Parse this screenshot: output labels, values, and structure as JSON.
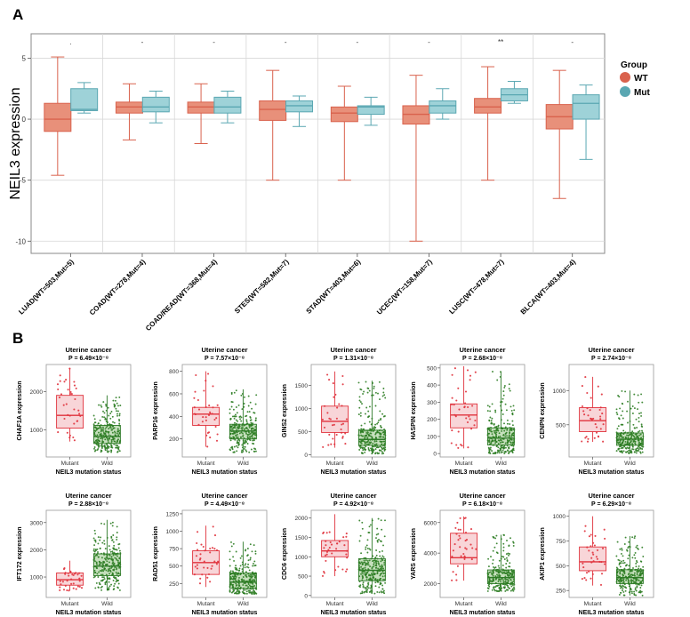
{
  "panel_labels": {
    "a": "A",
    "b": "B"
  },
  "colors": {
    "wt_fill": "#e8907a",
    "wt_stroke": "#d9624d",
    "mut_fill": "#9ed2d8",
    "mut_stroke": "#5aa7b2",
    "mutant_fill": "#f8d5d8",
    "mutant_stroke": "#e0323c",
    "mutant_dot": "#e0323c",
    "wild_fill": "#c6e0bd",
    "wild_stroke": "#2f7a2a",
    "wild_dot": "#2e7d23",
    "grid": "#d8d8d8"
  },
  "chart_data": [
    {
      "type": "box",
      "ylabel": "NEIL3 expression",
      "ylim": [
        -11,
        7
      ],
      "yticks": [
        -10,
        -5,
        0,
        5
      ],
      "ytick_labels": [
        "-10",
        "-5",
        "0",
        "5"
      ],
      "legend": {
        "title": "Group",
        "entries": [
          "WT",
          "Mut"
        ],
        "position": "right"
      },
      "categories": [
        "LUAD(WT=503,Mut=5)",
        "COAD(WT=278,Mut=4)",
        "COAD/READ(WT=368,Mut=4)",
        "STES(WT=582,Mut=7)",
        "STAD(WT=403,Mut=6)",
        "UCEC(WT=158,Mut=7)",
        "LUSC(WT=478,Mut=7)",
        "BLCA(WT=403,Mut=4)"
      ],
      "significance": [
        ".",
        "-",
        "-",
        "-",
        "-",
        "-",
        "**",
        "-"
      ],
      "series": [
        {
          "name": "WT",
          "boxes": [
            {
              "whislo": -4.6,
              "q1": -1.0,
              "med": 0.0,
              "q3": 1.3,
              "whishi": 5.1
            },
            {
              "whislo": -1.7,
              "q1": 0.5,
              "med": 1.0,
              "q3": 1.4,
              "whishi": 2.9
            },
            {
              "whislo": -2.0,
              "q1": 0.5,
              "med": 1.0,
              "q3": 1.4,
              "whishi": 2.9
            },
            {
              "whislo": -5.0,
              "q1": -0.1,
              "med": 0.8,
              "q3": 1.5,
              "whishi": 4.0
            },
            {
              "whislo": -5.0,
              "q1": -0.2,
              "med": 0.5,
              "q3": 1.0,
              "whishi": 2.7
            },
            {
              "whislo": -10.0,
              "q1": -0.4,
              "med": 0.4,
              "q3": 1.1,
              "whishi": 3.6
            },
            {
              "whislo": -5.0,
              "q1": 0.5,
              "med": 1.0,
              "q3": 1.7,
              "whishi": 4.3
            },
            {
              "whislo": -6.5,
              "q1": -0.8,
              "med": 0.2,
              "q3": 1.2,
              "whishi": 4.0
            }
          ]
        },
        {
          "name": "Mut",
          "boxes": [
            {
              "whislo": 0.5,
              "q1": 0.7,
              "med": 0.8,
              "q3": 2.5,
              "whishi": 3.0
            },
            {
              "whislo": -0.3,
              "q1": 0.6,
              "med": 1.0,
              "q3": 1.8,
              "whishi": 2.3
            },
            {
              "whislo": -0.3,
              "q1": 0.5,
              "med": 1.0,
              "q3": 1.8,
              "whishi": 2.3
            },
            {
              "whislo": -0.6,
              "q1": 0.6,
              "med": 1.1,
              "q3": 1.5,
              "whishi": 1.9
            },
            {
              "whislo": -0.5,
              "q1": 0.4,
              "med": 1.0,
              "q3": 1.1,
              "whishi": 1.8
            },
            {
              "whislo": 0.0,
              "q1": 0.5,
              "med": 1.1,
              "q3": 1.5,
              "whishi": 2.5
            },
            {
              "whislo": 1.3,
              "q1": 1.5,
              "med": 2.0,
              "q3": 2.5,
              "whishi": 3.1
            },
            {
              "whislo": -3.3,
              "q1": 0.0,
              "med": 1.3,
              "q3": 2.0,
              "whishi": 2.8
            }
          ]
        }
      ]
    },
    {
      "type": "box_jitter",
      "xlabel": "NEIL3 mutation status",
      "categories": [
        "Mutant",
        "Wild"
      ],
      "panels": [
        {
          "title": "Uterine cancer",
          "p_value": "P = 6.49×10⁻⁸",
          "ylabel": "CHAF1A expression",
          "ylim": [
            300,
            2700
          ],
          "yticks": [
            1000,
            2000
          ],
          "ytick_labels": [
            "1000",
            "2000"
          ],
          "mutant": {
            "whislo": 700,
            "q1": 1050,
            "med": 1380,
            "q3": 1900,
            "whishi": 2600
          },
          "wild": {
            "whislo": 420,
            "q1": 650,
            "med": 830,
            "q3": 1120,
            "whishi": 1900
          }
        },
        {
          "title": "Uterine cancer",
          "p_value": "P = 7.57×10⁻⁸",
          "ylabel": "PARP16 expression",
          "ylim": [
            40,
            860
          ],
          "yticks": [
            200,
            400,
            600,
            800
          ],
          "ytick_labels": [
            "200",
            "400",
            "600",
            "800"
          ],
          "mutant": {
            "whislo": 130,
            "q1": 320,
            "med": 420,
            "q3": 480,
            "whishi": 800
          },
          "wild": {
            "whislo": 80,
            "q1": 200,
            "med": 270,
            "q3": 330,
            "whishi": 640
          }
        },
        {
          "title": "Uterine cancer",
          "p_value": "P = 1.31×10⁻⁸",
          "ylabel": "GINS2 expression",
          "ylim": [
            -50,
            1950
          ],
          "yticks": [
            0,
            500,
            1000,
            1500
          ],
          "ytick_labels": [
            "0",
            "500",
            "1000",
            "1500"
          ],
          "mutant": {
            "whislo": 150,
            "q1": 480,
            "med": 720,
            "q3": 1050,
            "whishi": 1800
          },
          "wild": {
            "whislo": 20,
            "q1": 200,
            "med": 330,
            "q3": 530,
            "whishi": 1600
          }
        },
        {
          "title": "Uterine cancer",
          "p_value": "P = 2.68×10⁻⁸",
          "ylabel": "HASPIN expression",
          "ylim": [
            -20,
            520
          ],
          "yticks": [
            0,
            100,
            200,
            300,
            400,
            500
          ],
          "ytick_labels": [
            "0",
            "100",
            "200",
            "300",
            "400",
            "500"
          ],
          "mutant": {
            "whislo": 30,
            "q1": 150,
            "med": 225,
            "q3": 290,
            "whishi": 510
          },
          "wild": {
            "whislo": 0,
            "q1": 50,
            "med": 90,
            "q3": 150,
            "whishi": 480
          }
        },
        {
          "title": "Uterine cancer",
          "p_value": "P = 2.74×10⁻⁸",
          "ylabel": "CENPN expression",
          "ylim": [
            30,
            1380
          ],
          "yticks": [
            500,
            1000
          ],
          "ytick_labels": [
            "500",
            "1000"
          ],
          "mutant": {
            "whislo": 250,
            "q1": 400,
            "med": 560,
            "q3": 750,
            "whishi": 1200
          },
          "wild": {
            "whislo": 80,
            "q1": 200,
            "med": 290,
            "q3": 380,
            "whishi": 1000
          }
        },
        {
          "title": "Uterine cancer",
          "p_value": "P = 2.88×10⁻⁸",
          "ylabel": "IFT172 expression",
          "ylim": [
            250,
            3450
          ],
          "yticks": [
            1000,
            2000,
            3000
          ],
          "ytick_labels": [
            "1000",
            "2000",
            "3000"
          ],
          "mutant": {
            "whislo": 500,
            "q1": 700,
            "med": 900,
            "q3": 1150,
            "whishi": 1600
          },
          "wild": {
            "whislo": 500,
            "q1": 1050,
            "med": 1400,
            "q3": 1850,
            "whishi": 3100
          }
        },
        {
          "title": "Uterine cancer",
          "p_value": "P = 4.49×10⁻⁸",
          "ylabel": "RAD51 expression",
          "ylim": [
            50,
            1300
          ],
          "yticks": [
            250,
            500,
            750,
            1000,
            1250
          ],
          "ytick_labels": [
            "250",
            "500",
            "750",
            "1000",
            "1250"
          ],
          "mutant": {
            "whislo": 200,
            "q1": 380,
            "med": 550,
            "q3": 720,
            "whishi": 1080
          },
          "wild": {
            "whislo": 100,
            "q1": 180,
            "med": 270,
            "q3": 400,
            "whishi": 850
          }
        },
        {
          "title": "Uterine cancer",
          "p_value": "P = 4.92×10⁻⁸",
          "ylabel": "CDC6 expression",
          "ylim": [
            -50,
            2200
          ],
          "yticks": [
            0,
            500,
            1000,
            1500,
            2000
          ],
          "ytick_labels": [
            "0",
            "500",
            "1000",
            "1500",
            "2000"
          ],
          "mutant": {
            "whislo": 500,
            "q1": 1000,
            "med": 1150,
            "q3": 1420,
            "whishi": 2100
          },
          "wild": {
            "whislo": 50,
            "q1": 380,
            "med": 650,
            "q3": 950,
            "whishi": 2000
          }
        },
        {
          "title": "Uterine cancer",
          "p_value": "P = 6.18×10⁻⁸",
          "ylabel": "YARS expression",
          "ylim": [
            1100,
            6800
          ],
          "yticks": [
            2000,
            4000,
            6000
          ],
          "ytick_labels": [
            "2000",
            "4000",
            "6000"
          ],
          "mutant": {
            "whislo": 2200,
            "q1": 3300,
            "med": 3700,
            "q3": 5300,
            "whishi": 6400
          },
          "wild": {
            "whislo": 1500,
            "q1": 2000,
            "med": 2400,
            "q3": 2900,
            "whishi": 5200
          }
        },
        {
          "title": "Uterine cancer",
          "p_value": "P = 6.29×10⁻⁸",
          "ylabel": "AKIP1 expression",
          "ylim": [
            180,
            1060
          ],
          "yticks": [
            250,
            500,
            750,
            1000
          ],
          "ytick_labels": [
            "250",
            "500",
            "750",
            "1000"
          ],
          "mutant": {
            "whislo": 300,
            "q1": 450,
            "med": 540,
            "q3": 690,
            "whishi": 1000
          },
          "wild": {
            "whislo": 200,
            "q1": 320,
            "med": 380,
            "q3": 460,
            "whishi": 800
          }
        }
      ]
    }
  ]
}
